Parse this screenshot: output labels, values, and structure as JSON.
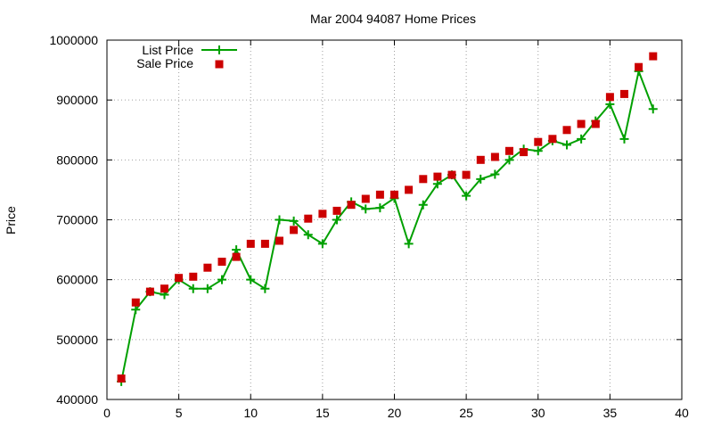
{
  "chart_data": {
    "type": "line",
    "title": "Mar 2004 94087 Home Prices",
    "xlabel": "",
    "ylabel": "Price",
    "xlim": [
      0,
      40
    ],
    "ylim": [
      400000,
      1000000
    ],
    "x_ticks": [
      "0",
      "5",
      "10",
      "15",
      "20",
      "25",
      "30",
      "35",
      "40"
    ],
    "y_ticks": [
      "400000",
      "500000",
      "600000",
      "700000",
      "800000",
      "900000",
      "1000000"
    ],
    "grid": true,
    "legend_position": "top-left",
    "series": [
      {
        "name": "List Price",
        "style": "line-with-plus-markers",
        "color": "#00a000",
        "x": [
          1,
          2,
          3,
          4,
          5,
          6,
          7,
          8,
          9,
          10,
          11,
          12,
          13,
          14,
          15,
          16,
          17,
          18,
          19,
          20,
          21,
          22,
          23,
          24,
          25,
          26,
          27,
          28,
          29,
          30,
          31,
          32,
          33,
          34,
          35,
          36,
          37,
          38
        ],
        "values": [
          430000,
          550000,
          580000,
          575000,
          600000,
          585000,
          585000,
          600000,
          650000,
          600000,
          585000,
          700000,
          698000,
          675000,
          660000,
          700000,
          730000,
          718000,
          720000,
          736000,
          660000,
          725000,
          760000,
          775000,
          740000,
          768000,
          776000,
          800000,
          818000,
          815000,
          832000,
          825000,
          835000,
          865000,
          893000,
          835000,
          948000,
          885000
        ]
      },
      {
        "name": "Sale Price",
        "style": "square-markers",
        "color": "#cc0000",
        "x": [
          1,
          2,
          3,
          4,
          5,
          6,
          7,
          8,
          9,
          10,
          11,
          12,
          13,
          14,
          15,
          16,
          17,
          18,
          19,
          20,
          21,
          22,
          23,
          24,
          25,
          26,
          27,
          28,
          29,
          30,
          31,
          32,
          33,
          34,
          35,
          36,
          37,
          38
        ],
        "values": [
          435000,
          562000,
          580000,
          585000,
          603000,
          605000,
          620000,
          630000,
          638000,
          660000,
          660000,
          665000,
          683000,
          702000,
          710000,
          715000,
          725000,
          735000,
          742000,
          742000,
          750000,
          768000,
          772000,
          775000,
          775000,
          800000,
          805000,
          815000,
          813000,
          830000,
          835000,
          850000,
          860000,
          860000,
          905000,
          910000,
          955000,
          973000
        ]
      }
    ]
  }
}
